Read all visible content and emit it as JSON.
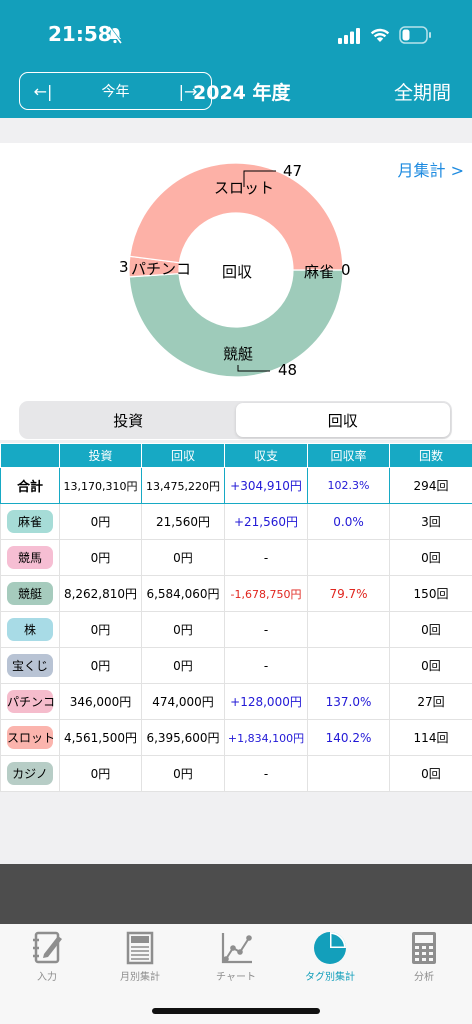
{
  "status": {
    "time": "21:58"
  },
  "header": {
    "prev_label": "←|",
    "year_label": "今年",
    "next_label": "|→",
    "title": "2024 年度",
    "all_period": "全期間"
  },
  "chart": {
    "monthly_link": "月集計 >",
    "center_label": "回収",
    "labels": [
      {
        "name": "スロット",
        "value": "47"
      },
      {
        "name": "パチンコ",
        "value": "3"
      },
      {
        "name": "麻雀",
        "value": "0"
      },
      {
        "name": "競艇",
        "value": "48"
      }
    ],
    "colors": {
      "slot": "#fdb1a7",
      "boat": "#9ecbba",
      "pachinko": "#fdb1a7",
      "mahjong": "#9ecbba"
    }
  },
  "chart_data": {
    "type": "pie",
    "center_label": "回収",
    "categories": [
      "競艇",
      "スロット",
      "パチンコ",
      "麻雀"
    ],
    "values": [
      48,
      47,
      3,
      0
    ],
    "donut": true
  },
  "segment": {
    "options": [
      "投資",
      "回収"
    ],
    "selected": "回収"
  },
  "table": {
    "headers": [
      "",
      "投資",
      "回収",
      "収支",
      "回収率",
      "回数"
    ],
    "total": {
      "name": "合計",
      "invest": "13,170,310円",
      "collect": "13,475,220円",
      "balance": "+304,910円",
      "rate": "102.3%",
      "count": "294回"
    },
    "rows": [
      {
        "name": "麻雀",
        "tag_color": "#a6dcd7",
        "invest": "0円",
        "collect": "21,560円",
        "balance": "+21,560円",
        "balance_color": "blue",
        "rate": "0.0%",
        "rate_color": "blue",
        "count": "3回"
      },
      {
        "name": "競馬",
        "tag_color": "#f6bed3",
        "invest": "0円",
        "collect": "0円",
        "balance": "-",
        "balance_color": "",
        "rate": "",
        "rate_color": "",
        "count": "0回"
      },
      {
        "name": "競艇",
        "tag_color": "#a6cbbd",
        "invest": "8,262,810円",
        "collect": "6,584,060円",
        "balance": "-1,678,750円",
        "balance_color": "red",
        "rate": "79.7%",
        "rate_color": "red",
        "count": "150回"
      },
      {
        "name": "株",
        "tag_color": "#a8dbe6",
        "invest": "0円",
        "collect": "0円",
        "balance": "-",
        "balance_color": "",
        "rate": "",
        "rate_color": "",
        "count": "0回"
      },
      {
        "name": "宝くじ",
        "tag_color": "#b8c3d4",
        "invest": "0円",
        "collect": "0円",
        "balance": "-",
        "balance_color": "",
        "rate": "",
        "rate_color": "",
        "count": "0回"
      },
      {
        "name": "パチンコ",
        "tag_color": "#f5bccc",
        "invest": "346,000円",
        "collect": "474,000円",
        "balance": "+128,000円",
        "balance_color": "blue",
        "rate": "137.0%",
        "rate_color": "blue",
        "count": "27回"
      },
      {
        "name": "スロット",
        "tag_color": "#fbb4ad",
        "invest": "4,561,500円",
        "collect": "6,395,600円",
        "balance": "+1,834,100円",
        "balance_color": "blue",
        "rate": "140.2%",
        "rate_color": "blue",
        "count": "114回"
      },
      {
        "name": "カジノ",
        "tag_color": "#b7cdc6",
        "invest": "0円",
        "collect": "0円",
        "balance": "-",
        "balance_color": "",
        "rate": "",
        "rate_color": "",
        "count": "0回"
      }
    ]
  },
  "tabs": [
    {
      "label": "入力",
      "icon": "notebook-pen-icon"
    },
    {
      "label": "月別集計",
      "icon": "calendar-sheet-icon"
    },
    {
      "label": "チャート",
      "icon": "line-chart-icon"
    },
    {
      "label": "タグ別集計",
      "icon": "pie-chart-icon",
      "active": true
    },
    {
      "label": "分析",
      "icon": "calculator-icon"
    }
  ]
}
